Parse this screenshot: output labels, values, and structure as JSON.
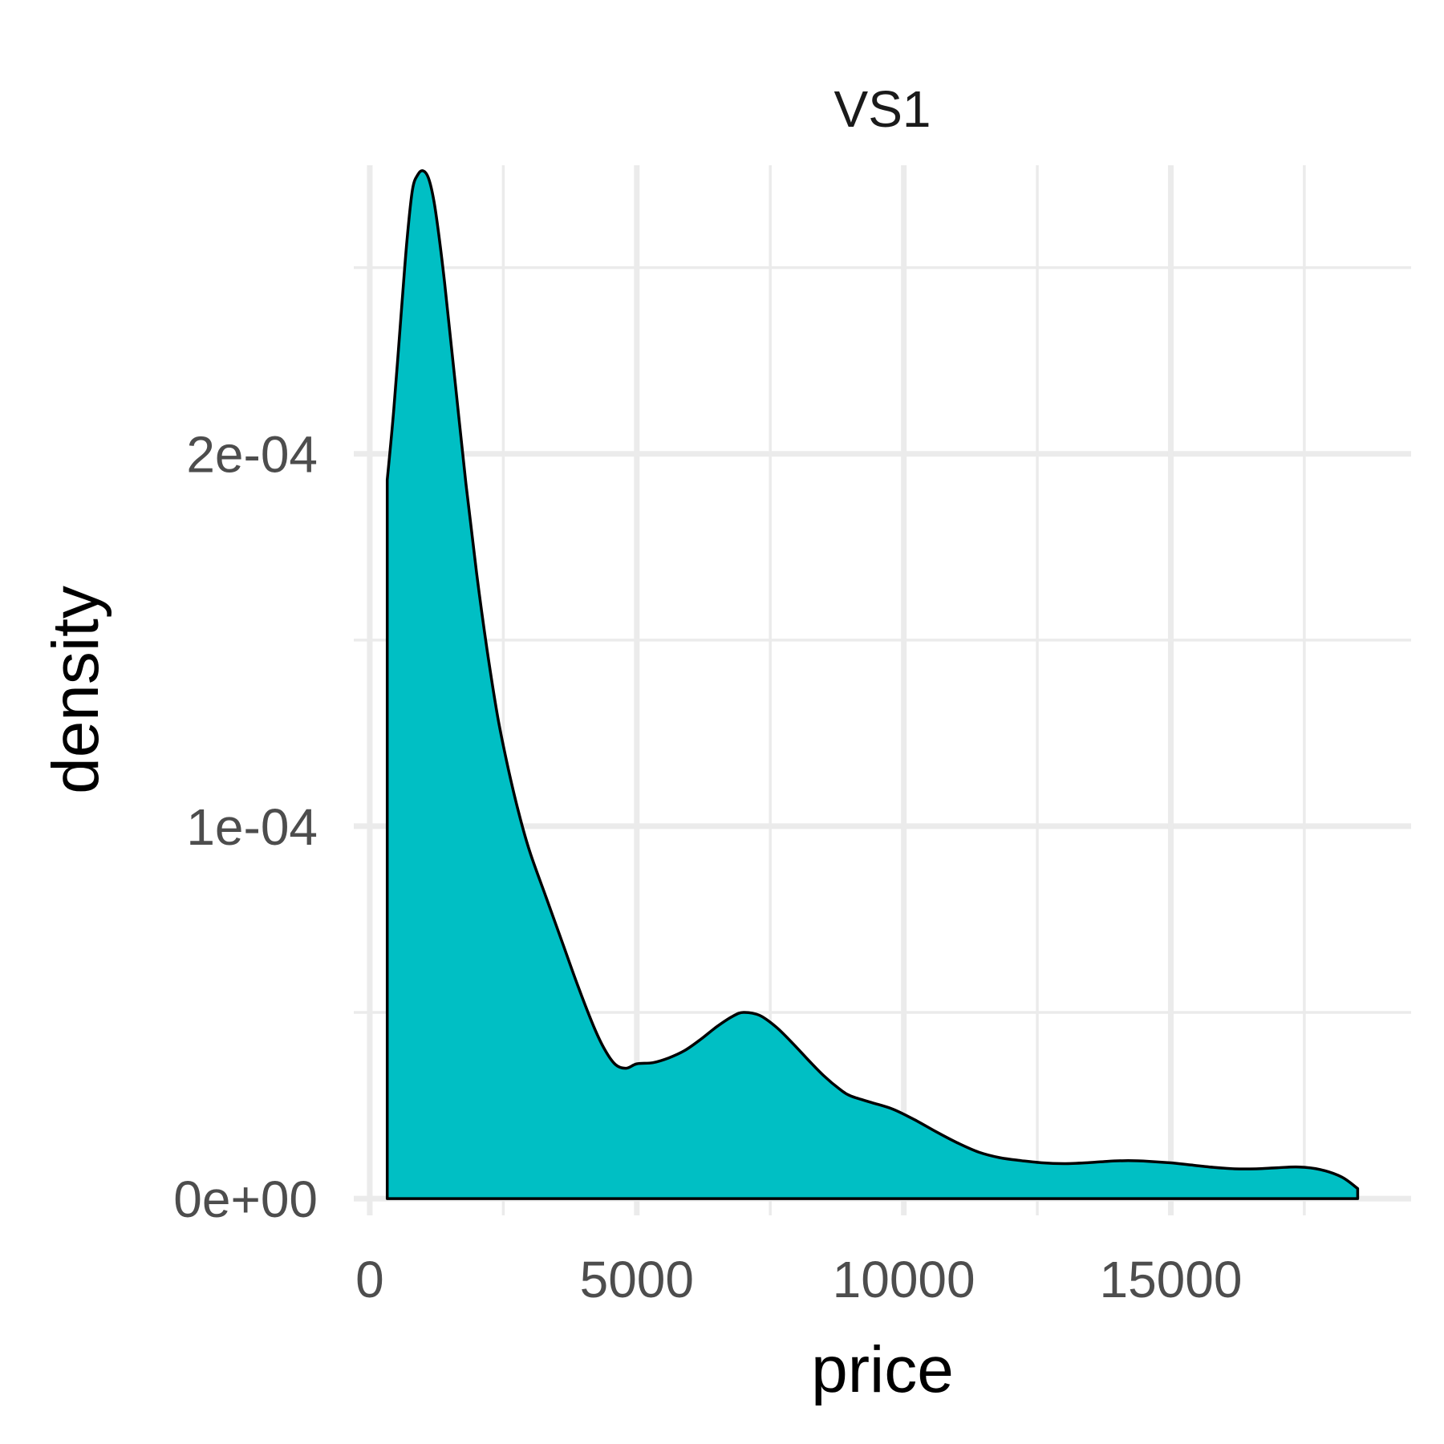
{
  "chart_data": {
    "type": "area",
    "facet_label": "VS1",
    "xlabel": "price",
    "ylabel": "density",
    "xlim": [
      -300,
      19500
    ],
    "ylim": [
      -4.5e-06,
      0.0002775
    ],
    "x_ticks": [
      0,
      5000,
      10000,
      15000
    ],
    "x_tick_labels": [
      "0",
      "5000",
      "10000",
      "15000"
    ],
    "x_minor_ticks": [
      2500,
      7500,
      12500,
      17500
    ],
    "y_ticks": [
      0,
      0.0001,
      0.0002
    ],
    "y_tick_labels": [
      "0e+00",
      "1e-04",
      "2e-04"
    ],
    "y_minor_ticks": [
      5e-05,
      0.00015,
      0.00025
    ],
    "grid": true,
    "legend": "none",
    "fill_color": "#00bfc4",
    "line_color": "#000000",
    "series": [
      {
        "x": [
          327,
          450,
          600,
          700,
          800,
          900,
          1000,
          1100,
          1200,
          1300,
          1400,
          1600,
          1800,
          2000,
          2200,
          2400,
          2600,
          2800,
          3000,
          3300,
          3600,
          3900,
          4200,
          4400,
          4600,
          4800,
          5000,
          5300,
          5600,
          5900,
          6200,
          6500,
          6800,
          7000,
          7300,
          7600,
          7900,
          8200,
          8500,
          8800,
          9000,
          9400,
          9800,
          10200,
          10600,
          11000,
          11400,
          11800,
          12200,
          12600,
          13000,
          13400,
          13800,
          14200,
          14600,
          15000,
          15400,
          15800,
          16200,
          16600,
          17000,
          17400,
          17800,
          18200,
          18500
        ],
        "y": [
          0.000193,
          0.000212,
          0.00024,
          0.000258,
          0.000271,
          0.000275,
          0.000276,
          0.000274,
          0.000268,
          0.000258,
          0.000246,
          0.000219,
          0.000192,
          0.000168,
          0.000147,
          0.000129,
          0.000115,
          0.000103,
          9.3e-05,
          8.1e-05,
          6.9e-05,
          5.7e-05,
          4.6e-05,
          4e-05,
          3.6e-05,
          3.5e-05,
          3.62e-05,
          3.65e-05,
          3.78e-05,
          3.98e-05,
          4.28e-05,
          4.62e-05,
          4.9e-05,
          5e-05,
          4.92e-05,
          4.62e-05,
          4.2e-05,
          3.74e-05,
          3.3e-05,
          2.94e-05,
          2.76e-05,
          2.58e-05,
          2.4e-05,
          2.12e-05,
          1.8e-05,
          1.5e-05,
          1.25e-05,
          1.1e-05,
          1.02e-05,
          9.6e-06,
          9.4e-06,
          9.6e-06,
          1e-05,
          1.02e-05,
          1e-05,
          9.6e-06,
          9e-06,
          8.4e-06,
          8e-06,
          8e-06,
          8.3e-06,
          8.5e-06,
          7.8e-06,
          5.8e-06,
          2.7e-06
        ]
      }
    ]
  }
}
